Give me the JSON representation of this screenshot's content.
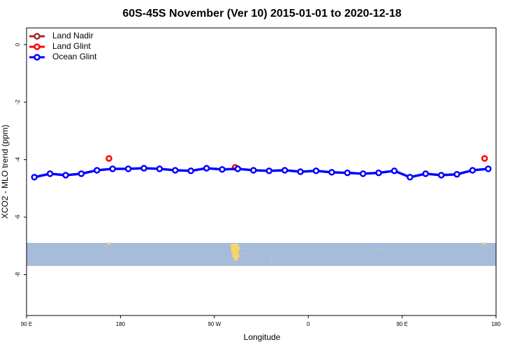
{
  "chart_data": {
    "type": "line",
    "title": "60S-45S November (Ver 10)   2015-01-01 to 2020-12-18",
    "x_label": "Longitude",
    "y_label": "XCO2 - MLO trend (ppm)",
    "xlim": [
      90,
      540
    ],
    "xticks": [
      {
        "value": 90,
        "label": "90 E"
      },
      180,
      {
        "value": 270,
        "label": "90 W"
      },
      {
        "value": 360,
        "label": "0"
      },
      {
        "value": 450,
        "label": "90 E"
      },
      {
        "value": 540,
        "label": "180"
      }
    ],
    "ylim": [
      -9.42,
      0.58
    ],
    "yticks": [
      0,
      -2,
      -4,
      -6,
      -8
    ],
    "legend": "top-left",
    "series": [
      {
        "name": "Land Nadir",
        "color": "#a52a2a",
        "x": [],
        "values": []
      },
      {
        "name": "Land Glint",
        "color": "#ff0000",
        "x": [
          169,
          290,
          529
        ],
        "values": [
          -3.96,
          -4.27,
          -3.96
        ]
      },
      {
        "name": "Ocean Glint",
        "color": "#0000ff",
        "x": [
          97.5,
          112.5,
          127.5,
          142.5,
          157.5,
          172.5,
          187.5,
          202.5,
          217.5,
          232.5,
          247.5,
          262.5,
          277.5,
          292.5,
          307.5,
          322.5,
          337.5,
          352.5,
          367.5,
          382.5,
          397.5,
          412.5,
          427.5,
          442.5,
          457.5,
          472.5,
          487.5,
          502.5,
          517.5,
          532.5
        ],
        "values": [
          -4.61,
          -4.49,
          -4.54,
          -4.49,
          -4.37,
          -4.32,
          -4.32,
          -4.3,
          -4.32,
          -4.37,
          -4.39,
          -4.3,
          -4.34,
          -4.32,
          -4.37,
          -4.39,
          -4.37,
          -4.42,
          -4.39,
          -4.44,
          -4.46,
          -4.49,
          -4.46,
          -4.39,
          -4.61,
          -4.49,
          -4.54,
          -4.51,
          -4.37,
          -4.32
        ]
      }
    ]
  }
}
